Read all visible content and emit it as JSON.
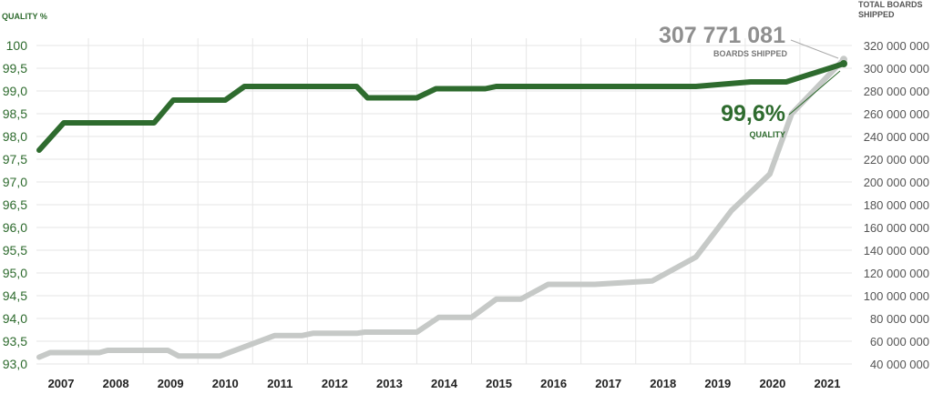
{
  "chart_data": {
    "type": "line",
    "ylabel": "QUALITY %",
    "y2label_lines": [
      "TOTAL BOARDS",
      "SHIPPED"
    ],
    "categories": [
      "2007",
      "2008",
      "2009",
      "2010",
      "2011",
      "2012",
      "2013",
      "2014",
      "2015",
      "2016",
      "2017",
      "2018",
      "2019",
      "2020",
      "2021"
    ],
    "ylim": [
      93.0,
      100
    ],
    "y2lim": [
      40000000,
      320000000
    ],
    "y_ticks": [
      "93,0",
      "93,5",
      "94,0",
      "94,5",
      "95,0",
      "95,5",
      "96,0",
      "96,5",
      "97,0",
      "97,5",
      "98,0",
      "98,5",
      "99,0",
      "99,5",
      "100"
    ],
    "y2_ticks": [
      "40 000 000",
      "60 000 000",
      "80 000 000",
      "100 000 000",
      "120 000 000",
      "140 000 000",
      "160 000 000",
      "180 000 000",
      "200 000 000",
      "220 000 000",
      "240 000 000",
      "260 000 000",
      "280 000 000",
      "300 000 000",
      "320 000 000"
    ],
    "grid": true,
    "series": [
      {
        "axis": "left",
        "color": "#2e6b2e",
        "x": [
          2006.6,
          2007.05,
          2008.7,
          2009.05,
          2010.0,
          2010.35,
          2011.6,
          2012.4,
          2012.6,
          2013.5,
          2013.85,
          2014.75,
          2014.95,
          2015.9,
          2018.6,
          2019.6,
          2020.25,
          2021.3
        ],
        "y": [
          97.7,
          98.3,
          98.3,
          98.8,
          98.8,
          99.1,
          99.1,
          99.1,
          98.85,
          98.85,
          99.05,
          99.05,
          99.1,
          99.1,
          99.1,
          99.2,
          99.2,
          99.6
        ]
      },
      {
        "axis": "right",
        "color": "#c6c9c7",
        "x": [
          2006.6,
          2006.8,
          2007.7,
          2007.85,
          2008.95,
          2009.15,
          2009.9,
          2010.9,
          2011.4,
          2011.6,
          2012.4,
          2012.55,
          2013.5,
          2013.9,
          2014.5,
          2014.95,
          2015.4,
          2015.9,
          2016.75,
          2017.8,
          2018.6,
          2019.25,
          2019.95,
          2020.35,
          2021.3
        ],
        "y": [
          46000000,
          50000000,
          50000000,
          52000000,
          52000000,
          47000000,
          47000000,
          65000000,
          65000000,
          67000000,
          67000000,
          68000000,
          68000000,
          81000000,
          81000000,
          97000000,
          97000000,
          110000000,
          110000000,
          113000000,
          134000000,
          175000000,
          207000000,
          260000000,
          307771081
        ]
      }
    ],
    "annotations": {
      "boards_value": "307 771 081",
      "boards_label": "BOARDS SHIPPED",
      "quality_value": "99,6%",
      "quality_label": "QUALITY"
    }
  }
}
